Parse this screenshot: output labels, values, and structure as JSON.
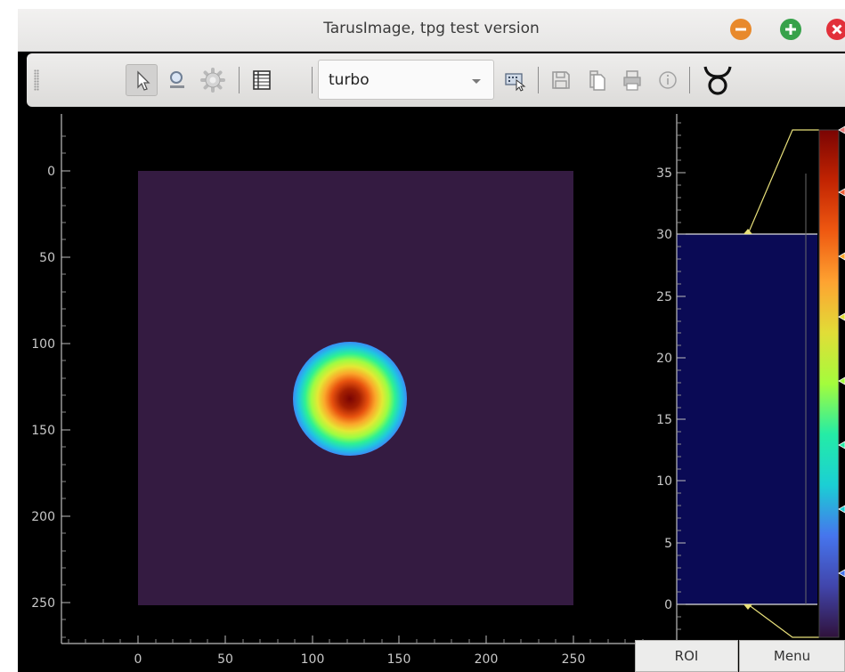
{
  "window": {
    "title": "TarusImage, tpg test version",
    "buttons": {
      "minimize_color": "#e8892b",
      "maximize_color": "#37a24a",
      "close_color": "#e2303a"
    }
  },
  "toolbar": {
    "tools": [
      "pointer-icon",
      "zoom-icon",
      "settings-icon",
      "table-icon",
      "colormap-select",
      "pick-region-icon",
      "save-icon",
      "copy-icon",
      "print-icon",
      "info-icon",
      "taurus-logo-icon"
    ],
    "colormap": {
      "value": "turbo"
    }
  },
  "image_plot": {
    "x_ticks": [
      "0",
      "50",
      "100",
      "150",
      "200",
      "250"
    ],
    "y_ticks": [
      "0",
      "50",
      "100",
      "150",
      "200",
      "250"
    ],
    "background_color": "#341b41",
    "colormap": "turbo"
  },
  "histogram": {
    "ticks": [
      "35",
      "30",
      "25",
      "20",
      "15",
      "10",
      "5",
      "0"
    ],
    "level_min": 0,
    "level_max": 30,
    "region_color": "#0a0a55",
    "line_color": "#e8e07a"
  },
  "bottom_tabs": {
    "roi_label": "ROI",
    "menu_label": "Menu"
  }
}
